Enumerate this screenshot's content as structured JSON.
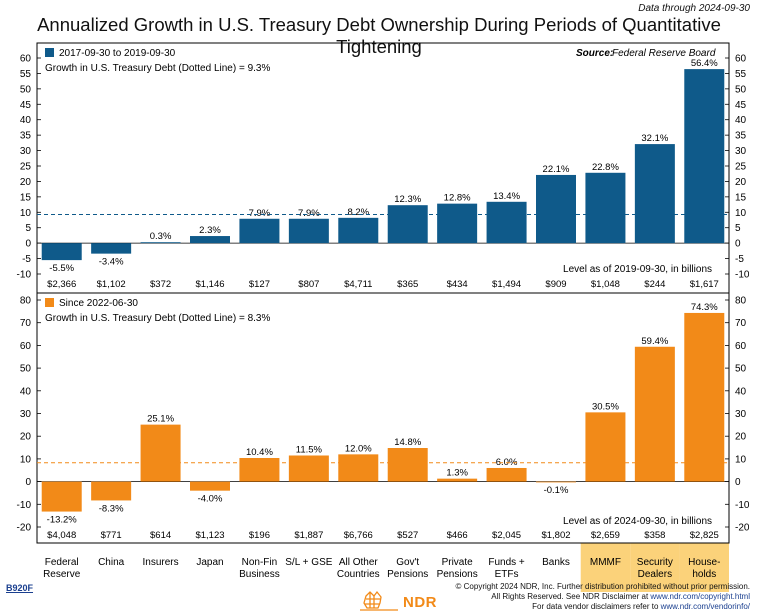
{
  "header": {
    "data_through": "Data through 2024-09-30",
    "title": "Annualized Growth in U.S. Treasury Debt Ownership During Periods of Quantitative Tightening",
    "source_label": "Source:",
    "source_value": "Federal Reserve Board"
  },
  "colors": {
    "top": "#0f5a8a",
    "bottom": "#f28a18",
    "highlight": "#fbd27a",
    "grid": "#000000"
  },
  "chart_data": [
    {
      "type": "bar",
      "legend": "2017-09-30 to 2019-09-30",
      "subtitle": "Growth in U.S. Treasury Debt (Dotted Line) = 9.3%",
      "reference_line": 9.3,
      "ylim": [
        -10,
        60
      ],
      "yticks": [
        -10,
        -5,
        0,
        5,
        10,
        15,
        20,
        25,
        30,
        35,
        40,
        45,
        50,
        55,
        60
      ],
      "values": [
        -5.5,
        -3.4,
        0.3,
        2.3,
        7.9,
        7.9,
        8.2,
        12.3,
        12.8,
        13.4,
        22.1,
        22.8,
        32.1,
        56.4
      ],
      "value_labels": [
        "-5.5%",
        "-3.4%",
        "0.3%",
        "2.3%",
        "7.9%",
        "7.9%",
        "8.2%",
        "12.3%",
        "12.8%",
        "13.4%",
        "22.1%",
        "22.8%",
        "32.1%",
        "56.4%"
      ],
      "level_note": "Level as of 2019-09-30, in billions",
      "levels": [
        "$2,366",
        "$1,102",
        "$372",
        "$1,146",
        "$127",
        "$807",
        "$4,711",
        "$365",
        "$434",
        "$1,494",
        "$909",
        "$1,048",
        "$244",
        "$1,617"
      ]
    },
    {
      "type": "bar",
      "legend": "Since 2022-06-30",
      "subtitle": "Growth in U.S. Treasury Debt (Dotted Line) = 8.3%",
      "reference_line": 8.3,
      "ylim": [
        -20,
        80
      ],
      "yticks": [
        -20,
        -10,
        0,
        10,
        20,
        30,
        40,
        50,
        60,
        70,
        80
      ],
      "values": [
        -13.2,
        -8.3,
        25.1,
        -4.0,
        10.4,
        11.5,
        12.0,
        14.8,
        1.3,
        6.0,
        -0.1,
        30.5,
        59.4,
        74.3
      ],
      "value_labels": [
        "-13.2%",
        "-8.3%",
        "25.1%",
        "-4.0%",
        "10.4%",
        "11.5%",
        "12.0%",
        "14.8%",
        "1.3%",
        "6.0%",
        "-0.1%",
        "30.5%",
        "59.4%",
        "74.3%"
      ],
      "level_note": "Level as of 2024-09-30, in billions",
      "levels": [
        "$4,048",
        "$771",
        "$614",
        "$1,123",
        "$196",
        "$1,887",
        "$6,766",
        "$527",
        "$466",
        "$2,045",
        "$1,802",
        "$2,659",
        "$358",
        "$2,825"
      ]
    }
  ],
  "categories": [
    [
      "Federal",
      "Reserve"
    ],
    [
      "China"
    ],
    [
      "Insurers"
    ],
    [
      "Japan"
    ],
    [
      "Non-Fin",
      "Business"
    ],
    [
      "S/L + GSE"
    ],
    [
      "All Other",
      "Countries"
    ],
    [
      "Gov't",
      "Pensions"
    ],
    [
      "Private",
      "Pensions"
    ],
    [
      "Funds +",
      "ETFs"
    ],
    [
      "Banks"
    ],
    [
      "MMMF"
    ],
    [
      "Security",
      "Dealers"
    ],
    [
      "House-",
      "holds"
    ]
  ],
  "highlighted_categories": [
    11,
    12,
    13
  ],
  "footer": {
    "ref_code": "B920F",
    "copyright_1": "© Copyright 2024 NDR, Inc. Further distribution prohibited without prior permission.",
    "copyright_2a": "All Rights Reserved. See NDR Disclaimer at ",
    "copyright_2b": "www.ndr.com/copyright.html",
    "copyright_3a": "For data vendor disclaimers refer to ",
    "copyright_3b": "www.ndr.com/vendorinfo/",
    "logo_text": "NDR"
  }
}
